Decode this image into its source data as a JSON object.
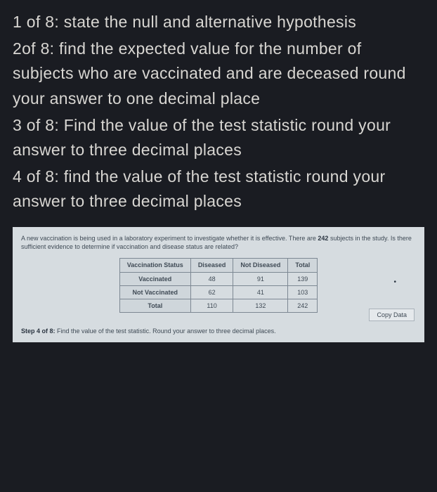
{
  "questions": {
    "q1": "1 of 8: state the null and alternative hypothesis",
    "q2": "2of 8: find the expected value for the number of subjects who are vaccinated and are deceased round your answer to one decimal place",
    "q3": "3 of 8: Find the value of the test statistic round your answer to three decimal places",
    "q4": "4 of 8: find the value of the test statistic round your answer to three decimal places"
  },
  "problem": {
    "intro_a": "A new vaccination is being used in a laboratory experiment to investigate whether it is effective. There are ",
    "intro_num": "242",
    "intro_b": " subjects in the study. Is there sufficient evidence to determine if vaccination and disease status are related?",
    "table": {
      "headers": [
        "Vaccination Status",
        "Diseased",
        "Not Diseased",
        "Total"
      ],
      "rows": [
        [
          "Vaccinated",
          "48",
          "91",
          "139"
        ],
        [
          "Not Vaccinated",
          "62",
          "41",
          "103"
        ],
        [
          "Total",
          "110",
          "132",
          "242"
        ]
      ]
    },
    "copy_label": "Copy Data",
    "step_prefix": "Step 4 of 8: ",
    "step_text": "Find the value of the test statistic. Round your answer to three decimal places."
  },
  "colors": {
    "page_bg": "#1a1c22",
    "text": "#d8d6d2",
    "box_bg": "#d6dce0",
    "box_text": "#3f4a55",
    "border": "#7d8893"
  }
}
